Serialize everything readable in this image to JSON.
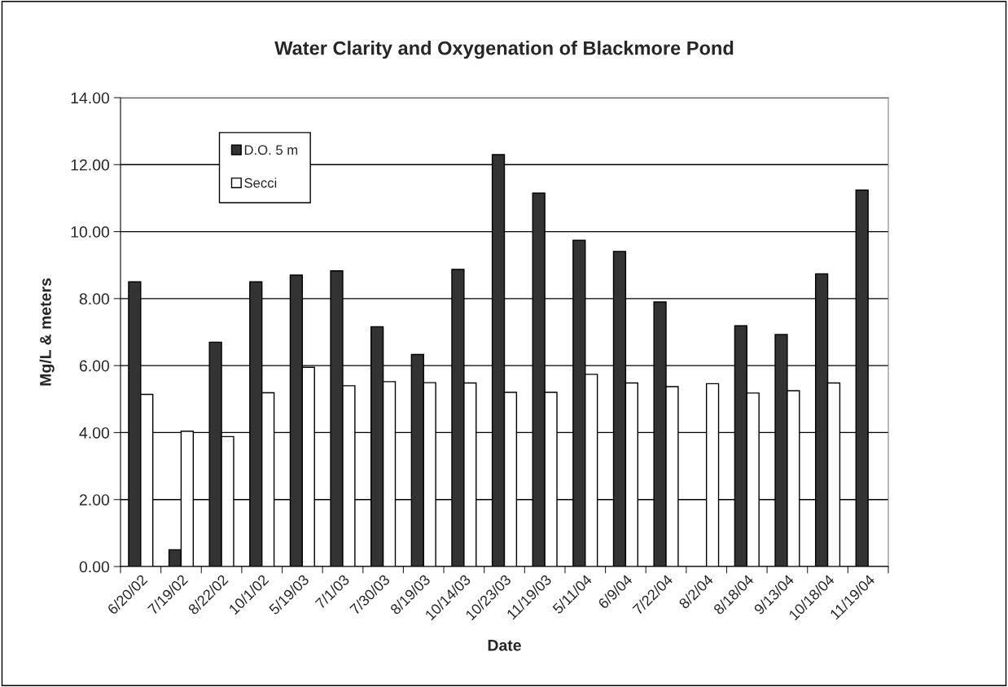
{
  "chart_data": {
    "type": "bar",
    "title": "Water Clarity and Oxygenation of Blackmore Pond",
    "xlabel": "Date",
    "ylabel": "Mg/L & meters",
    "categories": [
      "6/20/02",
      "7/19/02",
      "8/22/02",
      "10/1/02",
      "5/19/03",
      "7/1/03",
      "7/30/03",
      "8/19/03",
      "10/14/03",
      "10/23/03",
      "11/19/03",
      "5/11/04",
      "6/9/04",
      "7/22/04",
      "8/2/04",
      "8/18/04",
      "9/13/04",
      "10/18/04",
      "11/19/04"
    ],
    "series": [
      {
        "name": "D.O. 5 m",
        "color": "#333333",
        "values": [
          8.5,
          0.5,
          6.7,
          8.5,
          8.7,
          8.83,
          7.16,
          6.33,
          8.87,
          12.3,
          11.15,
          9.74,
          9.41,
          7.9,
          null,
          7.19,
          6.93,
          8.74,
          11.24
        ]
      },
      {
        "name": "Secci",
        "color": "#ffffff",
        "values": [
          5.14,
          4.04,
          3.88,
          5.19,
          5.95,
          5.4,
          5.52,
          5.49,
          5.48,
          5.2,
          5.2,
          5.74,
          5.48,
          5.37,
          5.46,
          5.18,
          5.25,
          5.48,
          null
        ]
      }
    ],
    "ylim": [
      0,
      14
    ],
    "yticks": [
      {
        "value": 0,
        "label": "0.00"
      },
      {
        "value": 2,
        "label": "2.00"
      },
      {
        "value": 4,
        "label": "4.00"
      },
      {
        "value": 6,
        "label": "6.00"
      },
      {
        "value": 8,
        "label": "8.00"
      },
      {
        "value": 10,
        "label": "10.00"
      },
      {
        "value": 12,
        "label": "12.00"
      },
      {
        "value": 14,
        "label": "14.00"
      }
    ],
    "grid": "y",
    "legend": "top left"
  }
}
